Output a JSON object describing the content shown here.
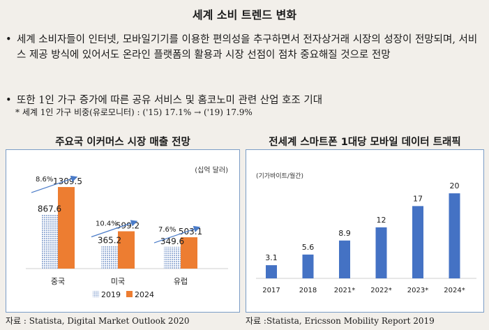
{
  "page": {
    "title": "세계 소비 트렌드 변화",
    "bullets": [
      {
        "symbol": "•",
        "text": "세계 소비자들이 인터넷, 모바일기기를 이용한 편의성을 추구하면서 전자상거래 시장의 성장이 전망되며, 서비스 제공 방식에 있어서도 온라인 플랫폼의 활용과 시장 선점이 점차 중요해질 것으로 전망"
      },
      {
        "symbol": "•",
        "text": "또한 1인 가구 증가에 따른 공유 서비스 및 홈코노미 관련 산업 호조 기대"
      }
    ],
    "note": "* 세계 1인 가구 비중(유로모니터) : ('15) 17.1% → ('19) 17.9%",
    "sources": [
      "자료 : Statista, Digital Market Outlook 2020",
      "자료 :Statista, Ericsson Mobility Report 2019"
    ]
  },
  "colors": {
    "orange": "#ed7d31",
    "blue": "#4472c4",
    "pattern_blue": "#9db3d8",
    "arrow": "#4a7bc8"
  },
  "chart_data": [
    {
      "type": "bar",
      "title": "주요국 이커머스 시장 매출 전망",
      "unit_label": "(십억 달러)",
      "categories": [
        "중국",
        "미국",
        "유럽"
      ],
      "series": [
        {
          "name": "2019",
          "values": [
            867.6,
            365.2,
            349.6
          ]
        },
        {
          "name": "2024",
          "values": [
            1309.5,
            599.2,
            503.1
          ]
        }
      ],
      "value_labels": [
        [
          "867.6",
          "365.2",
          "349.6"
        ],
        [
          "1309.5",
          "599.2",
          "503.1"
        ]
      ],
      "growth_labels": [
        "8.6%",
        "10.4%",
        "7.6%"
      ],
      "ylim": [
        0,
        1400
      ],
      "legend": "bottom"
    },
    {
      "type": "bar",
      "title": "전세계 스마트폰 1대당 모바일 데이터 트래픽",
      "unit_label": "(기가바이트/월간)",
      "categories": [
        "2017",
        "2018",
        "2021*",
        "2022*",
        "2023*",
        "2024*"
      ],
      "values": [
        3.1,
        5.6,
        8.9,
        12,
        17,
        20
      ],
      "value_labels": [
        "3.1",
        "5.6",
        "8.9",
        "12",
        "17",
        "20"
      ],
      "ylim": [
        0,
        21
      ]
    }
  ]
}
